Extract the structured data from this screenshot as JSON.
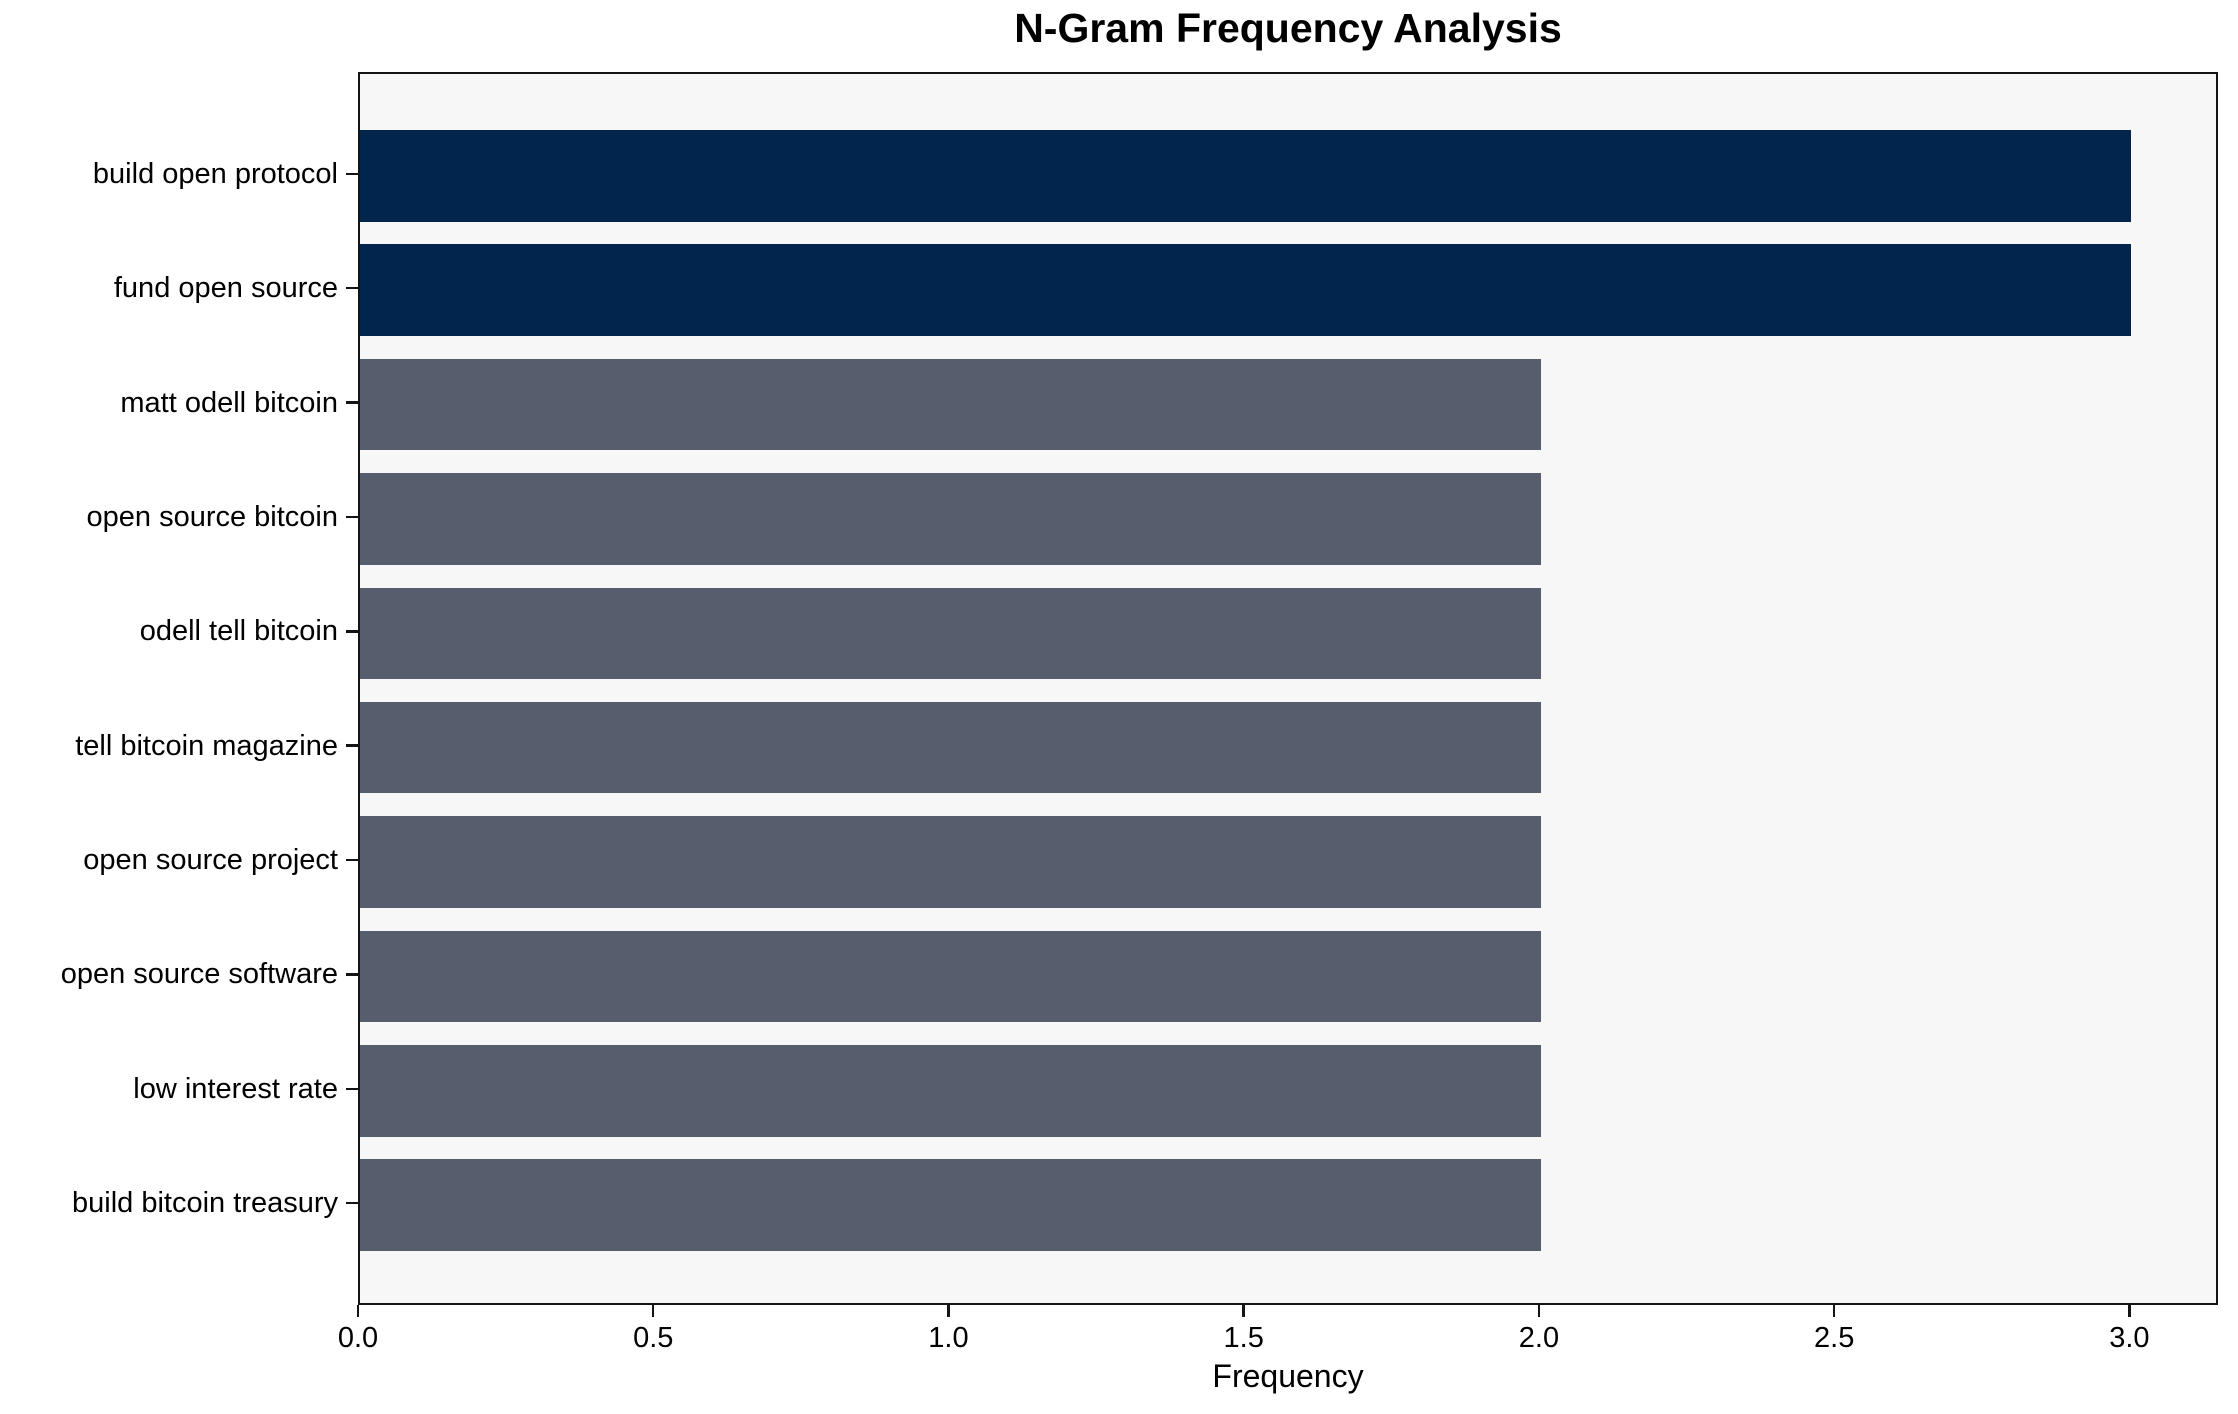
{
  "chart_data": {
    "type": "bar",
    "orientation": "horizontal",
    "title": "N-Gram Frequency Analysis",
    "xlabel": "Frequency",
    "ylabel": "",
    "categories": [
      "build open protocol",
      "fund open source",
      "matt odell bitcoin",
      "open source bitcoin",
      "odell tell bitcoin",
      "tell bitcoin magazine",
      "open source project",
      "open source software",
      "low interest rate",
      "build bitcoin treasury"
    ],
    "values": [
      3,
      3,
      2,
      2,
      2,
      2,
      2,
      2,
      2,
      2
    ],
    "bar_colors": [
      "#02254d",
      "#02254d",
      "#565d6d",
      "#565d6d",
      "#565d6d",
      "#565d6d",
      "#565d6d",
      "#565d6d",
      "#565d6d",
      "#565d6d"
    ],
    "xlim": [
      0,
      3.15
    ],
    "xticks": [
      0.0,
      0.5,
      1.0,
      1.5,
      2.0,
      2.5,
      3.0
    ],
    "xtick_labels": [
      "0.0",
      "0.5",
      "1.0",
      "1.5",
      "2.0",
      "2.5",
      "3.0"
    ],
    "grid": false,
    "legend": false,
    "colors": {
      "highlight": "#02254d",
      "default": "#565d6d",
      "plot_background": "#f7f7f8",
      "figure_background": "#ffffff",
      "spine": "#141414"
    }
  }
}
